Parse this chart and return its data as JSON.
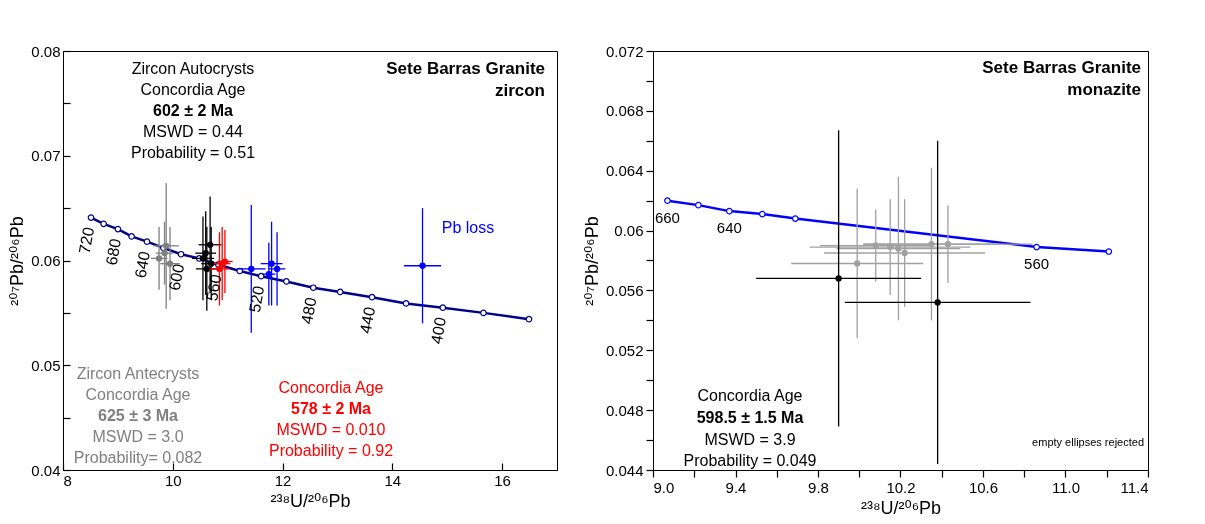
{
  "chart_data": [
    {
      "type": "scatter",
      "title": "Sete Barras Granite\nzircon",
      "xlabel": "²³⁸U/²⁰⁶Pb",
      "ylabel": "²⁰⁷Pb/²⁰⁶Pb",
      "xlim": [
        8,
        17
      ],
      "ylim": [
        0.04,
        0.08
      ],
      "xticks": [
        8,
        10,
        12,
        14,
        16
      ],
      "yticks": [
        0.04,
        {
          "value": 0.045,
          "label": null
        },
        0.05,
        {
          "value": 0.055,
          "label": null
        },
        0.06,
        {
          "value": 0.065,
          "label": null
        },
        0.07,
        {
          "value": 0.075,
          "label": null
        },
        0.08
      ],
      "grid": false,
      "marker": "circle",
      "series": [
        {
          "type": "line",
          "color": "#00008b",
          "x": [
            8.51,
            8.74,
            9.0,
            9.25,
            9.53,
            9.83,
            10.15,
            10.48,
            10.83,
            11.22,
            11.61,
            12.07,
            12.56,
            13.05,
            13.63,
            14.25,
            14.92,
            15.66,
            16.49
          ],
          "values": [
            0.0641,
            0.0635,
            0.063,
            0.0623,
            0.0618,
            0.0612,
            0.0606,
            0.0602,
            0.0596,
            0.059,
            0.0585,
            0.058,
            0.0574,
            0.057,
            0.0565,
            0.0559,
            0.0555,
            0.055,
            0.0544
          ]
        },
        {
          "color": "#808080",
          "x": [
            9.88,
            9.75,
            9.95,
            9.85
          ],
          "values": [
            0.0614,
            0.0602,
            0.0597,
            0.0607
          ],
          "xerrors": [
            0.23,
            0.15,
            0.18,
            0.16
          ],
          "errors": [
            0.006,
            0.003,
            0.0035,
            0.003
          ]
        },
        {
          "color": "#000000",
          "x": [
            10.68,
            10.55,
            10.62,
            10.7,
            10.6
          ],
          "values": [
            0.0615,
            0.0602,
            0.0592,
            0.0597,
            0.0607
          ],
          "xerrors": [
            0.21,
            0.2,
            0.2,
            0.18,
            0.19
          ],
          "errors": [
            0.0046,
            0.004,
            0.004,
            0.0035,
            0.004
          ]
        },
        {
          "color": "#ff0000",
          "x": [
            10.9,
            10.85,
            10.95
          ],
          "values": [
            0.0597,
            0.0592,
            0.0599
          ],
          "xerrors": [
            0.15,
            0.18,
            0.14
          ],
          "errors": [
            0.0035,
            0.0035,
            0.003
          ]
        },
        {
          "color": "#0000ff",
          "x": [
            11.43,
            11.8,
            11.9,
            11.75,
            14.55
          ],
          "values": [
            0.0592,
            0.0597,
            0.0592,
            0.0587,
            0.0595
          ],
          "xerrors": [
            0.26,
            0.2,
            0.15,
            0.12,
            0.34
          ],
          "errors": [
            0.0061,
            0.004,
            0.0035,
            0.003,
            0.0055
          ]
        }
      ],
      "annotations": [
        "Zircon Autocrysts",
        "Concordia Age",
        "602 ± 2 Ma",
        "MSWD = 0.44",
        "Probability = 0.51",
        "Pb loss",
        "Zircon Antecrysts",
        "Concordia Age",
        "625 ± 3 Ma",
        "MSWD = 3.0",
        "Probability= 0.082",
        "Concordia Age",
        "578 ± 2 Ma",
        "MSWD = 0.010",
        "Probability = 0.92",
        {
          "text": "720",
          "x": 8.51,
          "y": 0.0641
        },
        {
          "text": "680",
          "x": 9.0,
          "y": 0.063
        },
        {
          "text": "640",
          "x": 9.53,
          "y": 0.0618
        },
        {
          "text": "600",
          "x": 10.15,
          "y": 0.0606
        },
        {
          "text": "560",
          "x": 10.83,
          "y": 0.0596
        },
        {
          "text": "520",
          "x": 11.61,
          "y": 0.0585
        },
        {
          "text": "480",
          "x": 12.56,
          "y": 0.0574
        },
        {
          "text": "440",
          "x": 13.63,
          "y": 0.0565
        },
        {
          "text": "400",
          "x": 14.92,
          "y": 0.0555
        }
      ]
    },
    {
      "type": "scatter",
      "title": "Sete Barras Granite\nmonazite",
      "xlabel": "²³⁸U/²⁰⁶Pb",
      "ylabel": "²⁰⁷Pb/²⁰⁶Pb",
      "xlim": [
        9.0,
        11.4
      ],
      "ylim": [
        0.044,
        0.072
      ],
      "xticks": [
        {
          "value": 9,
          "label": "9.0"
        },
        {
          "value": 9.2,
          "label": null
        },
        9.4,
        {
          "value": 9.6,
          "label": null
        },
        9.8,
        {
          "value": 10,
          "label": null
        },
        10.2,
        {
          "value": 10.4,
          "label": null
        },
        10.6,
        {
          "value": 10.8,
          "label": null
        },
        {
          "value": 11,
          "label": "11.0"
        },
        {
          "value": 11.2,
          "label": null
        },
        11.4
      ],
      "yticks": [
        0.044,
        {
          "value": 0.046,
          "label": null
        },
        0.048,
        {
          "value": 0.05,
          "label": null
        },
        0.052,
        {
          "value": 0.054,
          "label": null
        },
        0.056,
        {
          "value": 0.058,
          "label": null
        },
        0.06,
        {
          "value": 0.062,
          "label": null
        },
        0.064,
        {
          "value": 0.066,
          "label": null
        },
        0.068,
        {
          "value": 0.07,
          "label": null
        },
        0.072
      ],
      "grid": false,
      "marker": "circle",
      "series": [
        {
          "type": "line",
          "color": "#0000ff",
          "x": [
            9.07,
            9.22,
            9.37,
            9.53,
            9.69,
            10.86,
            11.21
          ],
          "values": [
            0.062,
            0.0617,
            0.0613,
            0.0611,
            0.0608,
            0.0589,
            0.0586
          ]
        },
        {
          "color": "#a0a0a0",
          "x": [
            9.99,
            10.35,
            10.43,
            10.08,
            10.15,
            10.22,
            10.19
          ],
          "values": [
            0.0578,
            0.0591,
            0.0591,
            0.059,
            0.0589,
            0.0585,
            0.0588
          ],
          "xerrors": [
            0.32,
            0.33,
            0.41,
            0.27,
            0.39,
            0.39,
            0.3
          ],
          "errors": [
            0.005,
            0.0051,
            0.0026,
            0.0024,
            0.0032,
            0.0036,
            0.0048
          ]
        },
        {
          "color": "#000000",
          "x": [
            9.9,
            10.38
          ],
          "values": [
            0.0568,
            0.0552
          ],
          "xerrors": [
            0.4,
            0.45
          ],
          "errors": [
            0.0099,
            0.0108
          ]
        }
      ],
      "annotations": [
        "Concordia Age",
        "598.5 ± 1.5 Ma",
        "MSWD = 3.9",
        "Probability = 0.049",
        "empty ellipses rejected",
        {
          "text": "660",
          "x": 9.07,
          "y": 0.062
        },
        {
          "text": "640",
          "x": 9.37,
          "y": 0.0613
        },
        {
          "text": "560",
          "x": 10.86,
          "y": 0.0589
        }
      ]
    }
  ]
}
